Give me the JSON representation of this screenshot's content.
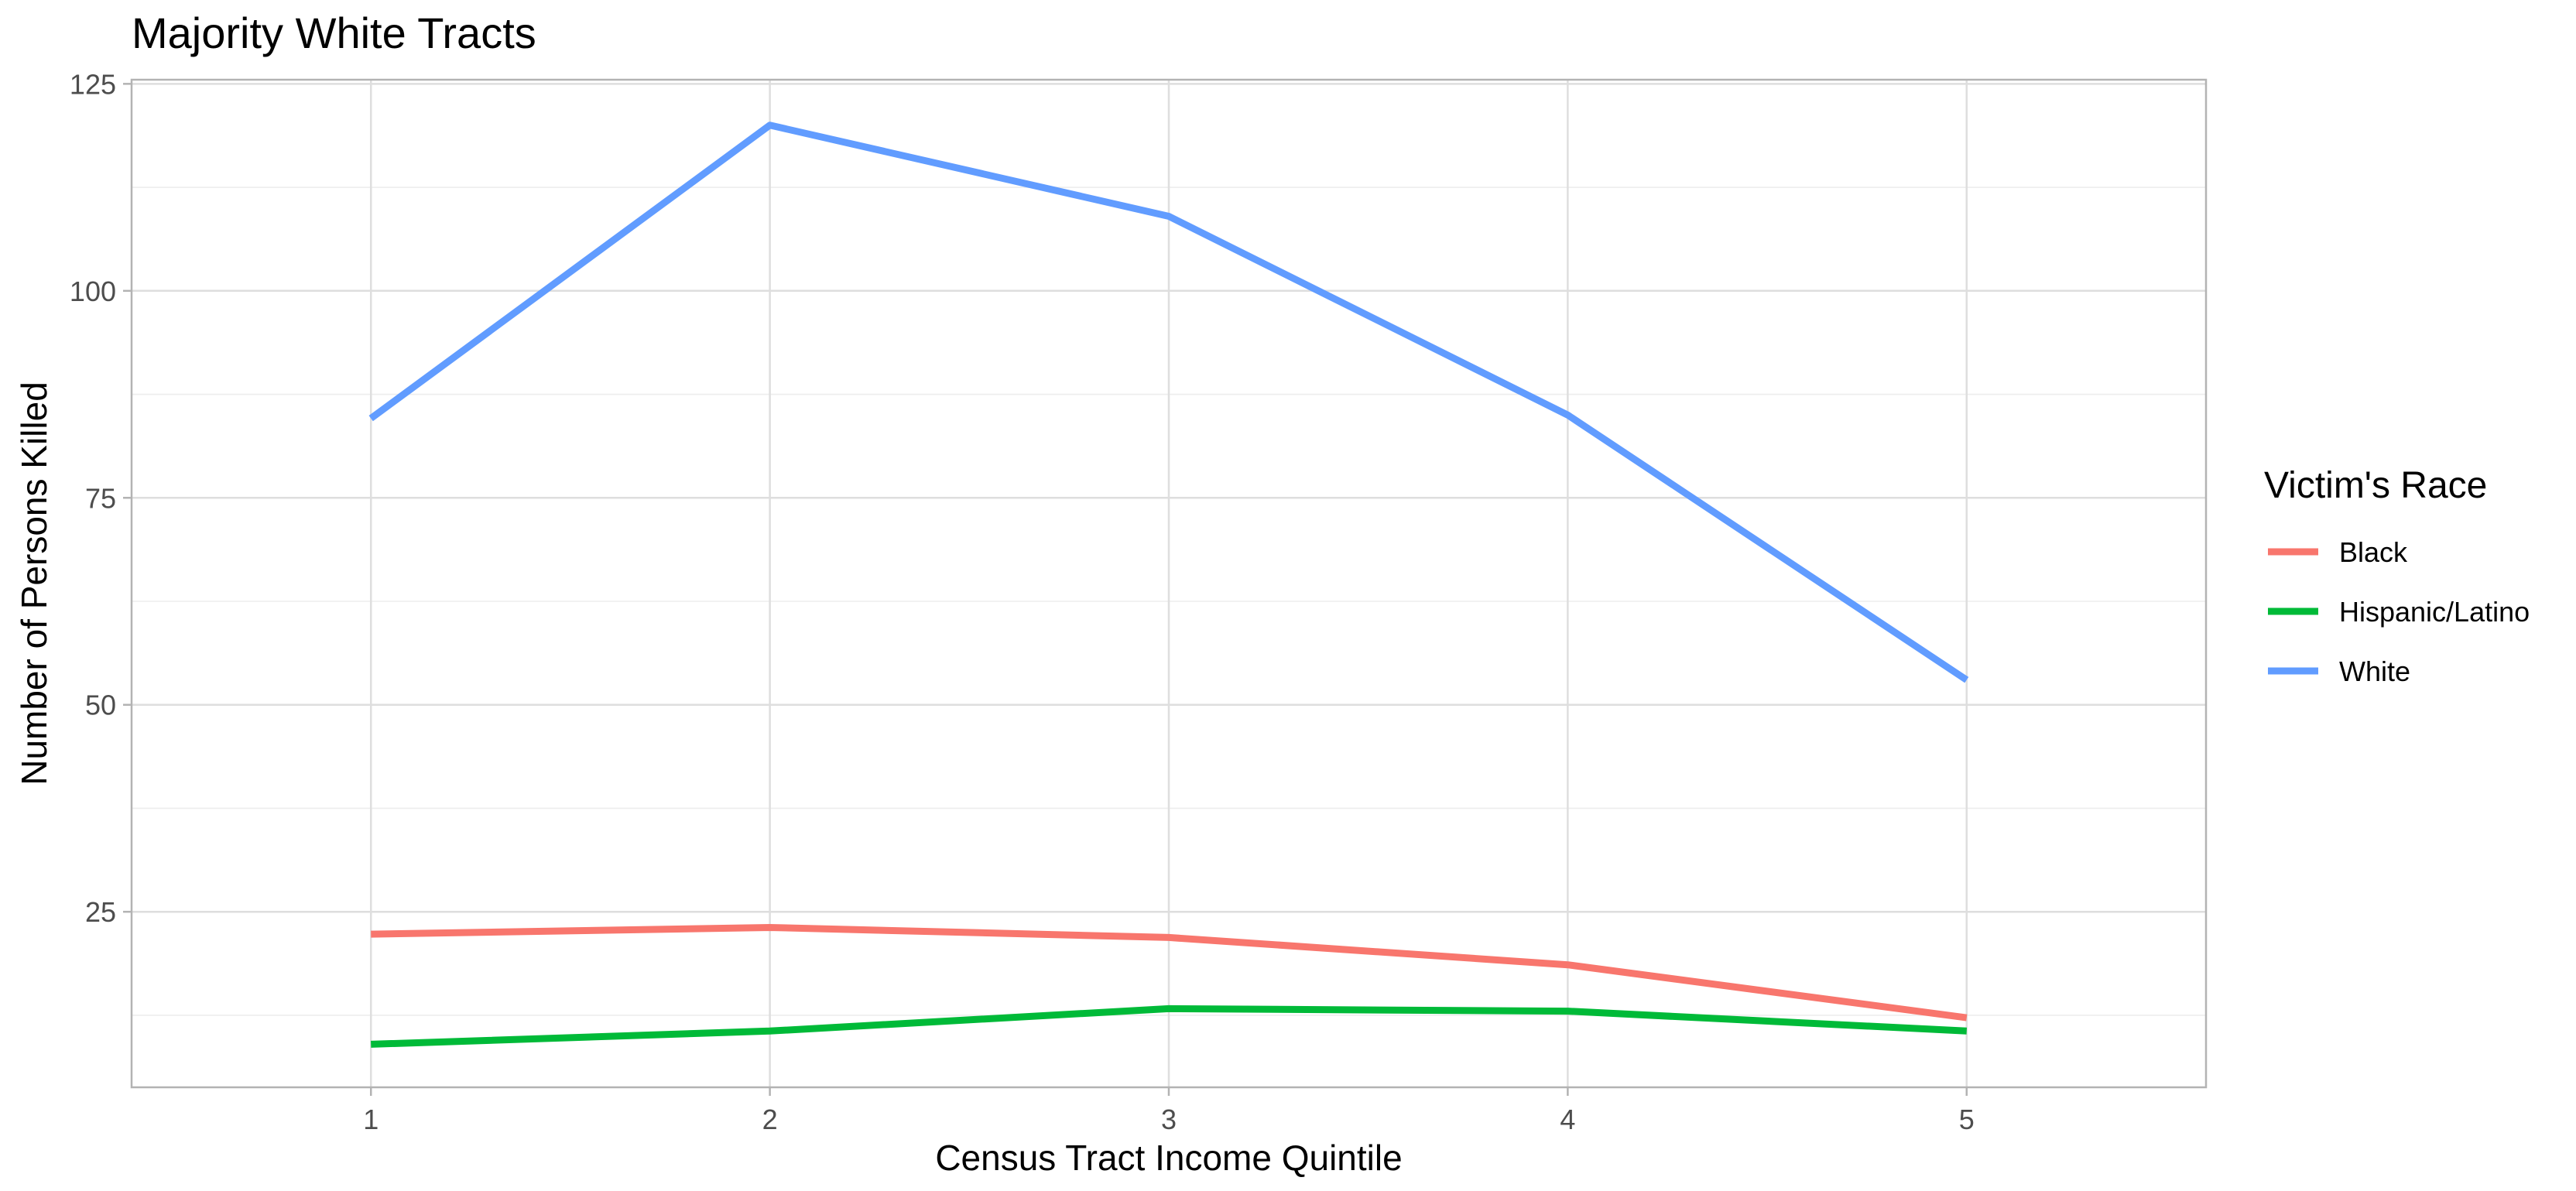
{
  "chart_data": {
    "type": "line",
    "title": "Majority White Tracts",
    "xlabel": "Census Tract Income Quintile",
    "ylabel": "Number of Persons Killed",
    "x": [
      1,
      2,
      3,
      4,
      5
    ],
    "xlim": [
      0.4,
      5.6
    ],
    "ylim": [
      3.8,
      125.5
    ],
    "x_ticks": [
      "1",
      "2",
      "3",
      "4",
      "5"
    ],
    "y_ticks": [
      25,
      50,
      75,
      100,
      125
    ],
    "y_minor_ticks": [
      12.5,
      37.5,
      62.5,
      87.5,
      112.5
    ],
    "grid": true,
    "legend": {
      "title": "Victim's Race",
      "position": "right"
    },
    "series": [
      {
        "name": "Black",
        "color": "#F8766D",
        "values": [
          22.3,
          23.1,
          21.9,
          18.6,
          12.2
        ]
      },
      {
        "name": "Hispanic/Latino",
        "color": "#00BA38",
        "values": [
          9.0,
          10.6,
          13.3,
          13.0,
          10.6
        ]
      },
      {
        "name": "White",
        "color": "#619CFF",
        "values": [
          84.6,
          120.0,
          109.0,
          85.0,
          53.0
        ]
      }
    ]
  }
}
